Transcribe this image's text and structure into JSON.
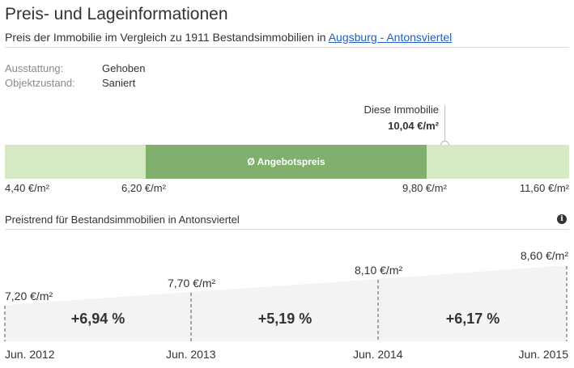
{
  "header": {
    "title": "Preis- und Lageinformationen",
    "subtitle_prefix": "Preis der Immobilie im Vergleich zu 1911 Bestandsimmobilien in ",
    "subtitle_link": "Augsburg - Antonsviertel"
  },
  "attributes": [
    {
      "label": "Ausstattung:",
      "value": "Gehoben"
    },
    {
      "label": "Objektzustand:",
      "value": "Saniert"
    }
  ],
  "price_range": {
    "this_property_label": "Diese Immobilie",
    "this_property_price": "10,04 €/m²",
    "band_label": "Ø Angebotspreis",
    "ticks": [
      "4,40 €/m²",
      "6,20 €/m²",
      "9,80 €/m²",
      "11,60 €/m²"
    ],
    "colors": {
      "outer": "#d5e9c4",
      "inner": "#7fb06e"
    }
  },
  "trend": {
    "title": "Preistrend für Bestandsimmobilien in Antonsviertel",
    "info_icon": "info-icon",
    "points": [
      {
        "date": "Jun. 2012",
        "price": "7,20 €/m²"
      },
      {
        "date": "Jun. 2013",
        "price": "7,70 €/m²"
      },
      {
        "date": "Jun. 2014",
        "price": "8,10 €/m²"
      },
      {
        "date": "Jun. 2015",
        "price": "8,60 €/m²"
      }
    ],
    "changes": [
      "+6,94 %",
      "+5,19 %",
      "+6,17 %"
    ]
  }
}
